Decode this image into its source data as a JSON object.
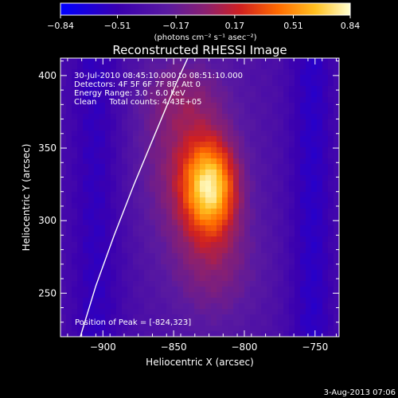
{
  "chart_data": {
    "type": "heatmap",
    "title": "Reconstructed RHESSI Image",
    "xlabel": "Heliocentric X (arcsec)",
    "ylabel": "Heliocentric Y (arcsec)",
    "xlim": [
      -930,
      -733
    ],
    "ylim": [
      220,
      412
    ],
    "x_ticks": [
      -900,
      -850,
      -800,
      -750
    ],
    "y_ticks": [
      250,
      300,
      350,
      400
    ],
    "colorbar": {
      "min": -0.84,
      "max": 0.84,
      "ticks": [
        -0.84,
        -0.51,
        -0.17,
        0.17,
        0.51,
        0.84
      ],
      "tick_labels": [
        "−0.84",
        "−0.51",
        "−0.17",
        "0.17",
        "0.51",
        "0.84"
      ],
      "unit_label": "(photons cm⁻² s⁻¹ asec⁻²)"
    },
    "info_lines": [
      "30-Jul-2010 08:45:10.000 to 08:51:10.000",
      "Detectors: 4F 5F 6F 7F 8F, Att 0",
      "Energy Range: 3.0 - 6.0 keV",
      "Clean     Total counts: 4.43E+05"
    ],
    "peak_label": "Position of Peak = [-824,323]",
    "peak_position": [
      -824,
      323
    ],
    "limb_curve": [
      [
        -916,
        220
      ],
      [
        -905,
        255
      ],
      [
        -892,
        290
      ],
      [
        -878,
        325
      ],
      [
        -863,
        360
      ],
      [
        -848,
        395
      ],
      [
        -840,
        412
      ]
    ],
    "sources": [
      {
        "x": -824,
        "y": 323,
        "amp": 0.84,
        "sx": 13,
        "sy": 22
      },
      {
        "x": -840,
        "y": 340,
        "amp": 0.35,
        "sx": 24,
        "sy": 38
      },
      {
        "x": -822,
        "y": 270,
        "amp": 0.28,
        "sx": 22,
        "sy": 30
      },
      {
        "x": -845,
        "y": 388,
        "amp": 0.18,
        "sx": 22,
        "sy": 18
      }
    ],
    "background": {
      "base": -0.34,
      "dark_bands": [
        {
          "x": -905,
          "amp": -0.22,
          "sx": 14
        },
        {
          "x": -752,
          "amp": -0.25,
          "sx": 12
        }
      ]
    }
  },
  "footer": {
    "date": "3-Aug-2013 07:06"
  }
}
